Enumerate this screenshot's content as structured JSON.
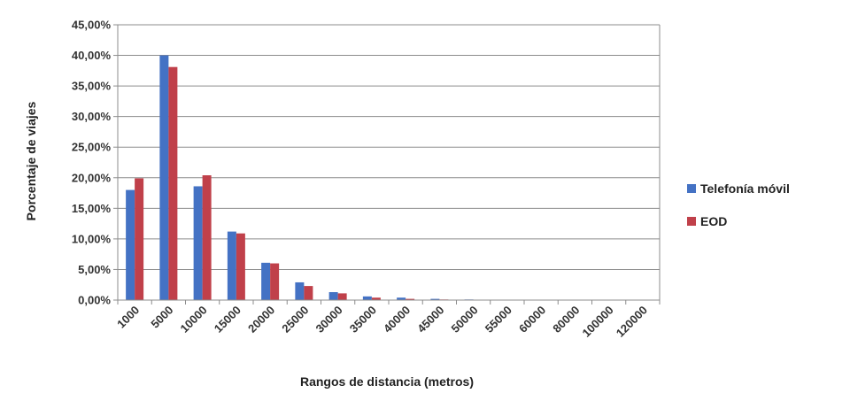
{
  "chart_data": {
    "type": "bar",
    "title": "",
    "xlabel": "Rangos de distancia (metros)",
    "ylabel": "Porcentaje de viajes",
    "ylim": [
      0,
      45
    ],
    "y_ticks": [
      "0,00%",
      "5,00%",
      "10,00%",
      "15,00%",
      "20,00%",
      "25,00%",
      "30,00%",
      "35,00%",
      "40,00%",
      "45,00%"
    ],
    "categories": [
      "1000",
      "5000",
      "10000",
      "15000",
      "20000",
      "25000",
      "30000",
      "35000",
      "40000",
      "45000",
      "50000",
      "55000",
      "60000",
      "80000",
      "100000",
      "120000"
    ],
    "series": [
      {
        "name": "Telefonía móvil",
        "color": "#4472C4",
        "values": [
          18.0,
          40.0,
          18.6,
          11.2,
          6.1,
          2.9,
          1.3,
          0.6,
          0.4,
          0.2,
          0.1,
          0.05,
          0.03,
          0.02,
          0.01,
          0.01
        ]
      },
      {
        "name": "EOD",
        "color": "#C0404A",
        "values": [
          19.9,
          38.1,
          20.4,
          10.9,
          6.0,
          2.3,
          1.1,
          0.4,
          0.2,
          0.1,
          0.05,
          0.03,
          0.02,
          0.01,
          0.01,
          0.01
        ]
      }
    ],
    "grid": true,
    "legend_position": "right"
  }
}
